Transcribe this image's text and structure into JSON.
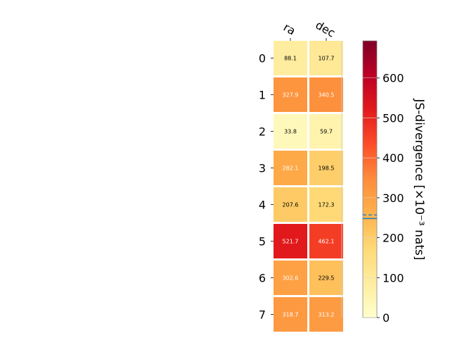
{
  "chart_data": {
    "type": "heatmap",
    "columns": [
      "ra",
      "dec"
    ],
    "rows": [
      "0",
      "1",
      "2",
      "3",
      "4",
      "5",
      "6",
      "7"
    ],
    "values": [
      [
        88.1,
        107.7
      ],
      [
        327.9,
        340.5
      ],
      [
        33.8,
        59.7
      ],
      [
        282.1,
        198.5
      ],
      [
        207.6,
        172.3
      ],
      [
        521.7,
        462.1
      ],
      [
        302.6,
        229.5
      ],
      [
        318.7,
        313.2
      ]
    ],
    "value_labels": [
      [
        "88.1",
        "107.7"
      ],
      [
        "327.9",
        "340.5"
      ],
      [
        "33.8",
        "59.7"
      ],
      [
        "282.1",
        "198.5"
      ],
      [
        "207.6",
        "172.3"
      ],
      [
        "521.7",
        "462.1"
      ],
      [
        "302.6",
        "229.5"
      ],
      [
        "318.7",
        "313.2"
      ]
    ],
    "colorbar": {
      "label": "JS-divergence [×10⁻³ nats]",
      "range": [
        0,
        693
      ],
      "ticks": [
        0,
        100,
        200,
        300,
        400,
        500,
        600
      ],
      "tick_labels": [
        "0",
        "100",
        "200",
        "300",
        "400",
        "500",
        "600"
      ],
      "colormap": "YlOrRd",
      "solid_marker": 248,
      "dashed_marker": 257,
      "marker_color": "#2f7fbf"
    },
    "grid": false
  }
}
